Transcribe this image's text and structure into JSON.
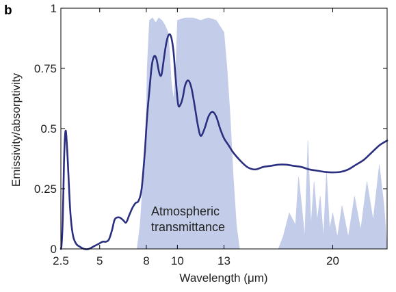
{
  "panel_label": "b",
  "chart_data": {
    "type": "line",
    "xlabel": "Wavelength (μm)",
    "ylabel": "Emissivity/absorptivity",
    "xlim": [
      2.5,
      23.5
    ],
    "ylim": [
      0,
      1
    ],
    "xticks": [
      2.5,
      5,
      8,
      10,
      13,
      20
    ],
    "xtick_labels": [
      "2.5",
      "5",
      "8",
      "10",
      "13",
      "20"
    ],
    "yticks": [
      0,
      0.25,
      0.5,
      0.75,
      1
    ],
    "ytick_labels": [
      "0",
      "0.25",
      "0.5",
      "0.75",
      "1"
    ],
    "grid": false,
    "annotation": [
      "Atmospheric",
      "transmittance"
    ],
    "colors": {
      "emissivity": "#2b2f7f",
      "transmittance": "#c3cdea"
    },
    "series": [
      {
        "role": "emissivity",
        "x": [
          2.5,
          2.55,
          2.62,
          2.7,
          2.75,
          2.8,
          2.85,
          2.95,
          3.05,
          3.15,
          3.3,
          3.5,
          3.7,
          4.0,
          4.3,
          4.6,
          4.9,
          5.2,
          5.4,
          5.6,
          5.8,
          5.95,
          6.1,
          6.3,
          6.5,
          6.7,
          6.9,
          7.1,
          7.3,
          7.5,
          7.7,
          7.9,
          8.05,
          8.2,
          8.35,
          8.5,
          8.65,
          8.8,
          8.9,
          9.0,
          9.15,
          9.3,
          9.45,
          9.6,
          9.75,
          9.9,
          10.05,
          10.2,
          10.35,
          10.5,
          10.7,
          10.9,
          11.1,
          11.3,
          11.5,
          11.75,
          12.0,
          12.25,
          12.5,
          12.75,
          13.0,
          13.3,
          13.6,
          14.0,
          14.5,
          15.0,
          15.5,
          16.0,
          16.5,
          17.0,
          17.5,
          18.0,
          18.5,
          19.0,
          19.5,
          20.0,
          20.5,
          21.0,
          21.5,
          22.0,
          22.5,
          23.0,
          23.5
        ],
        "y": [
          0.0,
          0.02,
          0.12,
          0.35,
          0.45,
          0.49,
          0.47,
          0.36,
          0.22,
          0.12,
          0.05,
          0.02,
          0.01,
          0.0,
          0.0,
          0.01,
          0.02,
          0.03,
          0.03,
          0.04,
          0.08,
          0.12,
          0.13,
          0.13,
          0.12,
          0.11,
          0.14,
          0.17,
          0.19,
          0.2,
          0.25,
          0.4,
          0.55,
          0.66,
          0.76,
          0.8,
          0.79,
          0.74,
          0.72,
          0.73,
          0.8,
          0.86,
          0.89,
          0.88,
          0.82,
          0.7,
          0.6,
          0.6,
          0.63,
          0.68,
          0.7,
          0.67,
          0.6,
          0.52,
          0.47,
          0.5,
          0.55,
          0.57,
          0.55,
          0.5,
          0.46,
          0.43,
          0.4,
          0.37,
          0.34,
          0.33,
          0.34,
          0.345,
          0.35,
          0.35,
          0.345,
          0.34,
          0.33,
          0.325,
          0.32,
          0.318,
          0.32,
          0.33,
          0.35,
          0.37,
          0.4,
          0.43,
          0.45
        ]
      },
      {
        "role": "transmittance",
        "x": [
          7.4,
          7.6,
          7.8,
          8.0,
          8.05,
          8.2,
          8.4,
          8.6,
          8.8,
          9.0,
          9.2,
          9.4,
          9.5,
          9.6,
          9.75,
          9.9,
          10.0,
          10.5,
          11.0,
          11.5,
          12.0,
          12.5,
          13.0,
          13.2,
          13.4,
          13.6,
          13.8,
          14.0,
          16.5,
          16.8,
          17.2,
          17.6,
          17.8,
          18.0,
          18.2,
          18.4,
          18.6,
          18.8,
          19.0,
          19.2,
          19.4,
          19.6,
          19.8,
          20.0,
          20.3,
          20.6,
          21.0,
          21.4,
          21.8,
          22.2,
          22.6,
          23.0,
          23.3,
          23.5
        ],
        "y": [
          0.0,
          0.1,
          0.3,
          0.55,
          0.75,
          0.95,
          0.96,
          0.94,
          0.96,
          0.95,
          0.93,
          0.9,
          0.82,
          0.7,
          0.62,
          0.75,
          0.95,
          0.96,
          0.96,
          0.95,
          0.96,
          0.95,
          0.9,
          0.75,
          0.55,
          0.3,
          0.1,
          0.0,
          0.0,
          0.05,
          0.15,
          0.1,
          0.3,
          0.18,
          0.05,
          0.45,
          0.1,
          0.28,
          0.12,
          0.22,
          0.05,
          0.32,
          0.08,
          0.15,
          0.05,
          0.18,
          0.05,
          0.22,
          0.08,
          0.28,
          0.12,
          0.35,
          0.18,
          0.0
        ]
      }
    ]
  }
}
